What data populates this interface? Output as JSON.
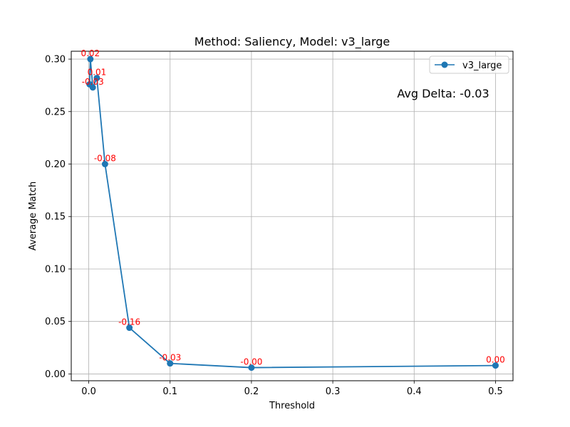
{
  "chart_data": {
    "type": "line",
    "title": "Method: Saliency, Model: v3_large",
    "xlabel": "Threshold",
    "ylabel": "Average Match",
    "xlim": [
      -0.0215,
      0.5215
    ],
    "ylim": [
      -0.0065,
      0.3075
    ],
    "x_ticks": [
      0.0,
      0.1,
      0.2,
      0.3,
      0.4,
      0.5
    ],
    "x_tick_labels": [
      "0.0",
      "0.1",
      "0.2",
      "0.3",
      "0.4",
      "0.5"
    ],
    "y_ticks": [
      0.0,
      0.05,
      0.1,
      0.15,
      0.2,
      0.25,
      0.3
    ],
    "y_tick_labels": [
      "0.00",
      "0.05",
      "0.10",
      "0.15",
      "0.20",
      "0.25",
      "0.30"
    ],
    "grid": true,
    "legend_position": "top-right",
    "series": [
      {
        "name": "v3_large",
        "color": "#1f77b4",
        "x": [
          0.001,
          0.002,
          0.005,
          0.01,
          0.02,
          0.05,
          0.1,
          0.2,
          0.5
        ],
        "y": [
          0.276,
          0.3,
          0.273,
          0.282,
          0.2,
          0.044,
          0.01,
          0.006,
          0.008
        ],
        "labels": [
          "",
          "0.02",
          "-0.03",
          "0.01",
          "-0.08",
          "-0.16",
          "-0.03",
          "-0.00",
          "0.00"
        ]
      }
    ],
    "annotation": "Avg Delta: -0.03",
    "label_color": "#ff0000"
  }
}
